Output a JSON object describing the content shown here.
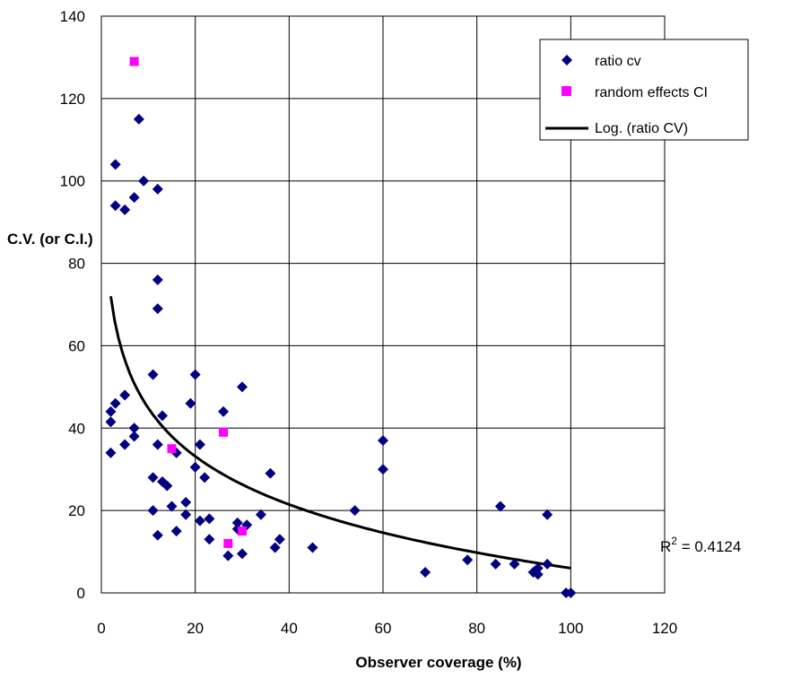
{
  "chart_data": {
    "type": "scatter",
    "xlabel": "Observer coverage (%)",
    "ylabel": "C.V. (or C.I.)",
    "xlim": [
      0,
      120
    ],
    "ylim": [
      0,
      140
    ],
    "x_ticks": [
      "0",
      "20",
      "40",
      "60",
      "80",
      "100",
      "120"
    ],
    "y_ticks": [
      "0",
      "20",
      "40",
      "60",
      "80",
      "100",
      "120",
      "140"
    ],
    "grid": true,
    "legend_position": "top-right",
    "series": [
      {
        "name": "ratio cv",
        "marker": "diamond",
        "color": "#000080",
        "points": [
          [
            3,
            104
          ],
          [
            3,
            94
          ],
          [
            5,
            93
          ],
          [
            7,
            96
          ],
          [
            8,
            115
          ],
          [
            9,
            100
          ],
          [
            12,
            98
          ],
          [
            12,
            76
          ],
          [
            12,
            69
          ],
          [
            11,
            53
          ],
          [
            2,
            44
          ],
          [
            2,
            41.5
          ],
          [
            3,
            46
          ],
          [
            5,
            48
          ],
          [
            7,
            40
          ],
          [
            7,
            38
          ],
          [
            2,
            34
          ],
          [
            5,
            36
          ],
          [
            11,
            28
          ],
          [
            11,
            20
          ],
          [
            12,
            36
          ],
          [
            12,
            14
          ],
          [
            13,
            43
          ],
          [
            13,
            27
          ],
          [
            14,
            26
          ],
          [
            15,
            21
          ],
          [
            16,
            34
          ],
          [
            16,
            15
          ],
          [
            18,
            22
          ],
          [
            18,
            19
          ],
          [
            19,
            46
          ],
          [
            20,
            53
          ],
          [
            20,
            30.5
          ],
          [
            21,
            36
          ],
          [
            21,
            17.5
          ],
          [
            22,
            28
          ],
          [
            23,
            18
          ],
          [
            23,
            13
          ],
          [
            26,
            44
          ],
          [
            27,
            9
          ],
          [
            29,
            17
          ],
          [
            29,
            15.5
          ],
          [
            30,
            50
          ],
          [
            30,
            9.5
          ],
          [
            31,
            16.5
          ],
          [
            34,
            19
          ],
          [
            36,
            29
          ],
          [
            37,
            11
          ],
          [
            38,
            13
          ],
          [
            45,
            11
          ],
          [
            54,
            20
          ],
          [
            60,
            37
          ],
          [
            60,
            30
          ],
          [
            69,
            5
          ],
          [
            78,
            8
          ],
          [
            84,
            7
          ],
          [
            85,
            21
          ],
          [
            88,
            7
          ],
          [
            92,
            5
          ],
          [
            93,
            4.5
          ],
          [
            93,
            6
          ],
          [
            95,
            19
          ],
          [
            95,
            7
          ],
          [
            99,
            0
          ],
          [
            100,
            0
          ]
        ]
      },
      {
        "name": "random effects CI",
        "marker": "square",
        "color": "#ff00ff",
        "points": [
          [
            7,
            129
          ],
          [
            15,
            35
          ],
          [
            26,
            39
          ],
          [
            27,
            12
          ],
          [
            30,
            15
          ]
        ]
      },
      {
        "name": "Log. (ratio CV)",
        "type": "trendline",
        "color": "#000000",
        "fit": "logarithmic",
        "x_range": [
          2,
          100
        ],
        "anchor_points": [
          [
            2,
            72
          ],
          [
            100,
            6
          ]
        ]
      }
    ],
    "annotations": [
      {
        "text_base": "R",
        "superscript": "2",
        "text_rest": " = 0.4124"
      }
    ]
  }
}
